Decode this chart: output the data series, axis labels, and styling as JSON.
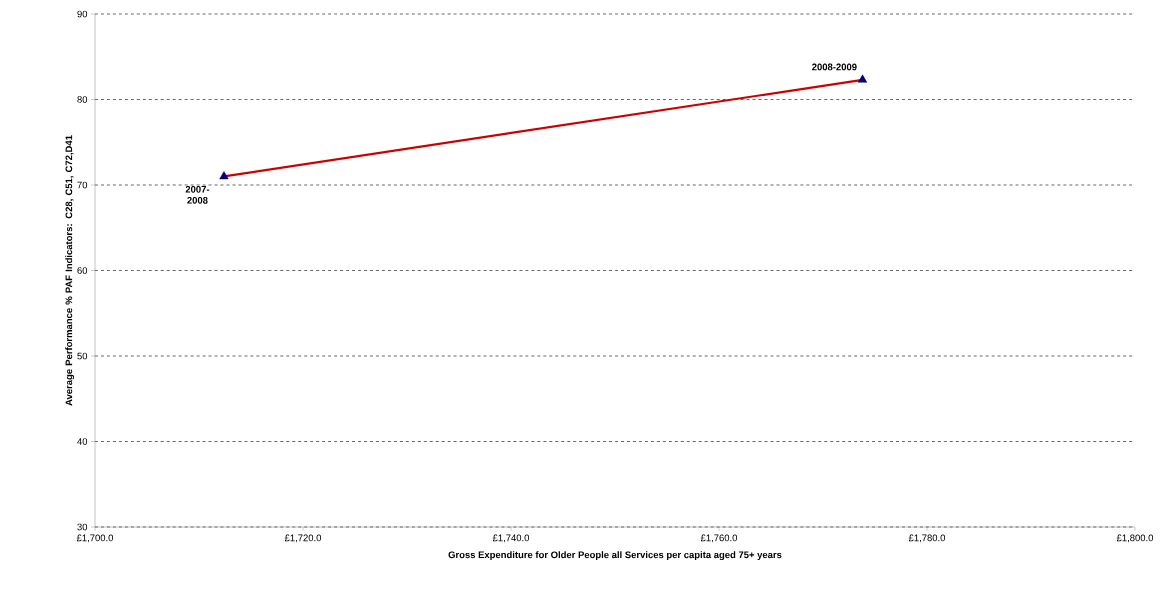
{
  "chart_data": {
    "type": "line",
    "xlabel": "Gross Expenditure for Older People all Services per capita aged 75+ years",
    "ylabel": "Average Performance % PAF Indicators: C28, C51, C72,D41",
    "series": [
      {
        "color": "#cc0000",
        "x": [
          1712.4,
          1773.8
        ],
        "values": [
          71.0,
          82.3
        ]
      }
    ],
    "xlim": [
      1700,
      1800
    ],
    "xticks": [
      {
        "value": 1700,
        "label": "£1,700.0"
      },
      {
        "value": 1720,
        "label": "£1,720.0"
      },
      {
        "value": 1740,
        "label": "£1,740.0"
      },
      {
        "value": 1760,
        "label": "£1,760.0"
      },
      {
        "value": 1780,
        "label": "£1,780.0"
      },
      {
        "value": 1800,
        "label": "£1,800.0"
      }
    ],
    "ylim": [
      30,
      90
    ],
    "yticks": [
      30,
      40,
      50,
      60,
      70,
      80,
      90
    ],
    "grid": "y",
    "marker": "triangle",
    "line_style": "solid",
    "annotations": [
      {
        "text": "2007-2008",
        "x": 1712.4,
        "y": 71.0
      },
      {
        "text": "2008-2009",
        "x": 1773.8,
        "y": 82.3
      }
    ]
  }
}
